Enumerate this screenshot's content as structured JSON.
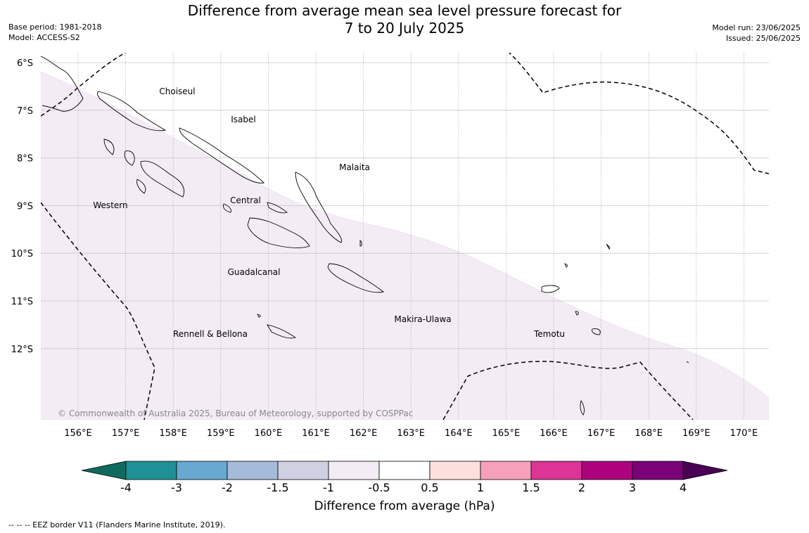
{
  "header": {
    "title_line1": "Difference from average mean sea level pressure forecast for",
    "title_line2": "7 to 20 July 2025",
    "base_period": "Base period: 1981-2018",
    "model": "Model: ACCESS-S2",
    "model_run": "Model run: 23/06/2025",
    "issued": "Issued: 25/06/2025"
  },
  "map": {
    "lat_labels": [
      "6°S",
      "7°S",
      "8°S",
      "9°S",
      "10°S",
      "11°S",
      "12°S"
    ],
    "lon_labels": [
      "156°E",
      "157°E",
      "158°E",
      "159°E",
      "160°E",
      "161°E",
      "162°E",
      "163°E",
      "164°E",
      "165°E",
      "166°E",
      "167°E",
      "168°E",
      "169°E",
      "170°E"
    ],
    "regions": [
      "Choiseul",
      "Isabel",
      "Malaita",
      "Western",
      "Central",
      "Guadalcanal",
      "Makira-Ulawa",
      "Rennell & Bellona",
      "Temotu"
    ],
    "copyright": "© Commonwealth of Australia 2025, Bureau of Meteorology, supported by COSPPac",
    "shaded_category": "-1 to -0.5",
    "shade_color": "#f3ecf5"
  },
  "colorbar": {
    "label": "Difference from average (hPa)",
    "tick_labels": [
      "-4",
      "-3",
      "-2",
      "-1.5",
      "-1",
      "-0.5",
      "0.5",
      "1",
      "1.5",
      "2",
      "3",
      "4"
    ],
    "under_color": "#0d6b5e",
    "over_color": "#4a0055",
    "colors": [
      "#1f9196",
      "#67a9d0",
      "#a6bbda",
      "#d0d0e3",
      "#f3ecf5",
      "#ffffff",
      "#fde0de",
      "#f6a0bb",
      "#dd3497",
      "#ae017e",
      "#7a0177"
    ]
  },
  "footer": {
    "legend_note": "--  --  -- EEZ border V11 (Flanders Marine Institute, 2019)."
  }
}
